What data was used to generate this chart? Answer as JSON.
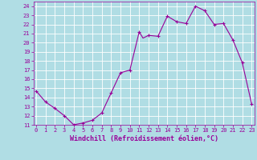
{
  "xlabel": "Windchill (Refroidissement éolien,°C)",
  "hours": [
    0,
    1,
    2,
    3,
    4,
    5,
    6,
    7,
    8,
    9,
    10,
    11,
    11.4,
    12,
    13,
    14,
    15,
    16,
    17,
    18,
    19,
    20,
    21,
    22,
    23
  ],
  "values": [
    14.7,
    13.5,
    12.8,
    12.0,
    11.0,
    11.2,
    11.5,
    12.3,
    14.5,
    16.7,
    17.0,
    21.2,
    20.5,
    20.8,
    20.7,
    22.9,
    22.3,
    22.1,
    24.0,
    23.5,
    22.0,
    22.1,
    20.3,
    17.8,
    13.3
  ],
  "marker_hours": [
    0,
    1,
    2,
    3,
    4,
    5,
    6,
    7,
    8,
    9,
    10,
    11,
    12,
    13,
    14,
    15,
    16,
    17,
    18,
    19,
    20,
    21,
    22,
    23
  ],
  "marker_vals": [
    14.7,
    13.5,
    12.8,
    12.0,
    11.0,
    11.2,
    11.5,
    12.3,
    14.5,
    16.7,
    17.0,
    21.2,
    20.8,
    20.7,
    22.9,
    22.3,
    22.1,
    24.0,
    23.5,
    22.0,
    22.1,
    20.3,
    17.8,
    13.3
  ],
  "ylim": [
    11,
    24.5
  ],
  "xlim": [
    -0.3,
    23.3
  ],
  "line_color": "#990099",
  "marker_color": "#990099",
  "bg_color": "#b0dde4",
  "grid_color": "#ffffff",
  "axis_label_color": "#990099",
  "tick_label_color": "#990099",
  "xlabel_fontsize": 6.0,
  "tick_fontsize": 5.0
}
